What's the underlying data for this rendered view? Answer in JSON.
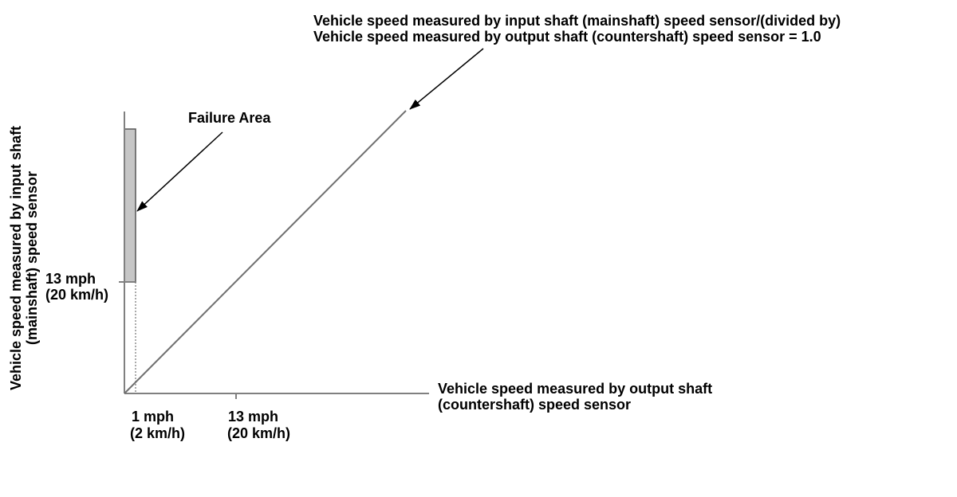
{
  "diagram": {
    "top_annotation": {
      "line1": "Vehicle speed measured by input shaft (mainshaft) speed sensor/(divided by)",
      "line2": "Vehicle speed measured by output shaft (countershaft) speed sensor = 1.0"
    },
    "failure_area_label": "Failure Area",
    "y_axis_label": {
      "line1": "Vehicle speed measured by input shaft",
      "line2": "(mainshaft) speed sensor"
    },
    "x_axis_label": {
      "line1": "Vehicle speed measured by output shaft",
      "line2": "(countershaft) speed sensor"
    },
    "y_tick": {
      "line1": "13 mph",
      "line2": "(20 km/h)"
    },
    "x_tick_1": {
      "line1": "1 mph",
      "line2": "(2 km/h)"
    },
    "x_tick_2": {
      "line1": "13 mph",
      "line2": "(20 km/h)"
    },
    "colors": {
      "failure_fill": "#c6c6c6",
      "axis": "#808080",
      "line": "#707070",
      "text": "#000000"
    }
  }
}
